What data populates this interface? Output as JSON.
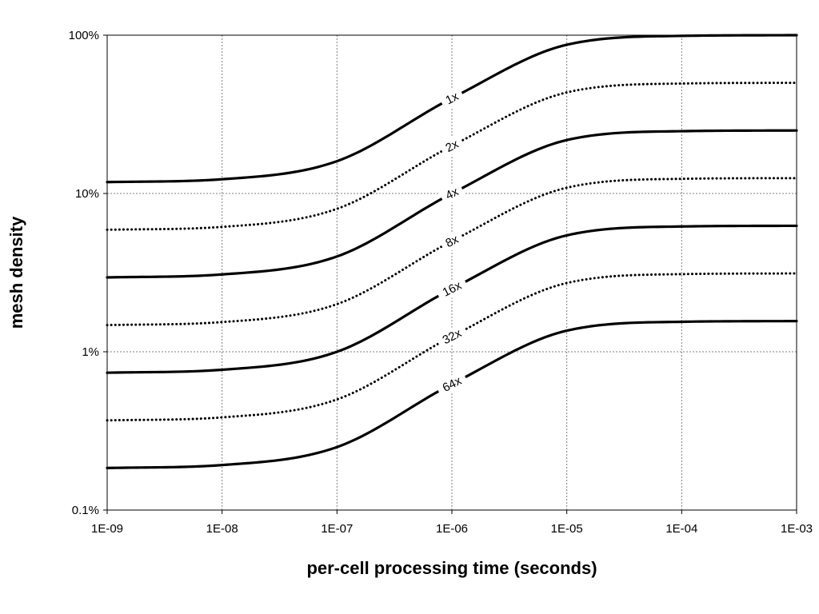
{
  "chart_data": {
    "type": "line",
    "xlabel": "per-cell processing time (seconds)",
    "ylabel": "mesh density",
    "x_scale": "log",
    "y_scale": "log",
    "xlim": [
      1e-09,
      0.001
    ],
    "ylim": [
      0.001,
      1.0
    ],
    "x_tick_labels": [
      "1E-09",
      "1E-08",
      "1E-07",
      "1E-06",
      "1E-05",
      "1E-04",
      "1E-03"
    ],
    "y_tick_labels": [
      "0.1%",
      "1%",
      "10%",
      "100%"
    ],
    "grid": true,
    "legend": "none",
    "x": [
      1e-09,
      1e-08,
      1e-07,
      1e-06,
      1e-05,
      0.0001,
      0.001
    ],
    "series": [
      {
        "name": "1x",
        "style": "solid",
        "values": [
          0.118,
          0.123,
          0.16,
          0.4,
          0.87,
          0.99,
          1.0
        ]
      },
      {
        "name": "2x",
        "style": "dotted",
        "values": [
          0.059,
          0.0615,
          0.08,
          0.2,
          0.435,
          0.495,
          0.5
        ]
      },
      {
        "name": "4x",
        "style": "solid",
        "values": [
          0.0295,
          0.0308,
          0.04,
          0.1,
          0.2175,
          0.2475,
          0.25
        ]
      },
      {
        "name": "8x",
        "style": "dotted",
        "values": [
          0.01475,
          0.0154,
          0.02,
          0.05,
          0.10875,
          0.12375,
          0.125
        ]
      },
      {
        "name": "16x",
        "style": "solid",
        "values": [
          0.007375,
          0.0077,
          0.01,
          0.025,
          0.054375,
          0.061875,
          0.0625
        ]
      },
      {
        "name": "32x",
        "style": "dotted",
        "values": [
          0.0036875,
          0.00385,
          0.005,
          0.0125,
          0.0271875,
          0.0309375,
          0.03125
        ]
      },
      {
        "name": "64x",
        "style": "solid",
        "values": [
          0.00184375,
          0.001925,
          0.0025,
          0.00625,
          0.01359375,
          0.01546875,
          0.015625
        ]
      }
    ]
  }
}
